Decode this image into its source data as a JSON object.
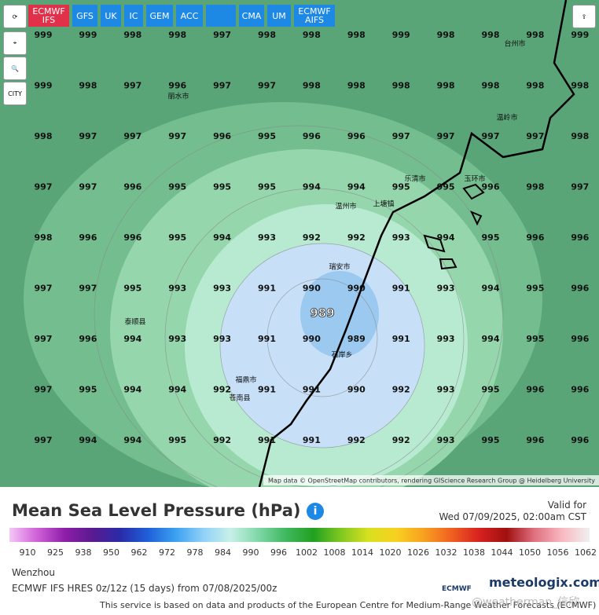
{
  "toolbar": {
    "models": [
      "ECMWF\nIFS",
      "GFS",
      "UK",
      "IC",
      "GEM",
      "ACC",
      "CMA",
      "UM",
      "ECMWF\nAIFS"
    ],
    "city": "CITY"
  },
  "map": {
    "pressure_rows": [
      [
        999,
        999,
        998,
        998,
        997,
        998,
        998,
        998,
        999,
        998,
        998,
        998,
        999
      ],
      [
        999,
        998,
        997,
        996,
        997,
        997,
        998,
        998,
        998,
        998,
        998,
        998,
        998
      ],
      [
        998,
        997,
        997,
        997,
        996,
        995,
        996,
        996,
        997,
        997,
        997,
        997,
        998
      ],
      [
        997,
        997,
        996,
        995,
        995,
        995,
        994,
        994,
        995,
        995,
        996,
        998,
        997
      ],
      [
        998,
        996,
        996,
        995,
        994,
        993,
        992,
        992,
        993,
        994,
        995,
        996,
        996
      ],
      [
        997,
        997,
        995,
        993,
        993,
        991,
        990,
        990,
        991,
        993,
        994,
        995,
        996
      ],
      [
        997,
        996,
        994,
        993,
        993,
        991,
        990,
        989,
        991,
        993,
        994,
        995,
        996
      ],
      [
        997,
        995,
        994,
        994,
        992,
        991,
        991,
        990,
        992,
        993,
        995,
        996,
        996
      ],
      [
        997,
        994,
        994,
        995,
        992,
        991,
        991,
        992,
        992,
        993,
        995,
        996,
        996
      ]
    ],
    "low": 989,
    "places": [
      "丽水市",
      "温州市",
      "瑞安市",
      "乐清市",
      "台州市",
      "温岭市",
      "玉环市",
      "福鼎市",
      "苍南县",
      "泰顺县",
      "上塘镇",
      "石岸乡"
    ],
    "attribution": "Map data © OpenStreetMap contributors, rendering GIScience Research Group @ Heidelberg University"
  },
  "legend": {
    "title": "Mean Sea Level Pressure (hPa)",
    "valid_label": "Valid for",
    "valid_time": "Wed 07/09/2025, 02:00am CST",
    "ticks": [
      910,
      925,
      938,
      950,
      962,
      972,
      978,
      984,
      990,
      996,
      1002,
      1008,
      1014,
      1020,
      1026,
      1032,
      1038,
      1044,
      1050,
      1056,
      1062
    ],
    "location": "Wenzhou",
    "model_run": "ECMWF IFS HRES 0z/12z (15 days) from 07/08/2025/00z",
    "brand": "meteologix.com",
    "ecmwf": "ECMWF",
    "disclaimer": "This service is based on data and products of the European Centre for Medium-Range Weather Forecasts (ECMWF)",
    "watermark": "@weatherman_信欣"
  }
}
